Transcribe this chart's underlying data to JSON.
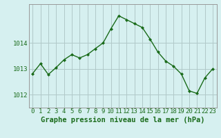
{
  "x": [
    0,
    1,
    2,
    3,
    4,
    5,
    6,
    7,
    8,
    9,
    10,
    11,
    12,
    13,
    14,
    15,
    16,
    17,
    18,
    19,
    20,
    21,
    22,
    23
  ],
  "y": [
    1012.82,
    1013.2,
    1012.78,
    1013.05,
    1013.35,
    1013.55,
    1013.42,
    1013.55,
    1013.78,
    1014.0,
    1014.55,
    1015.05,
    1014.9,
    1014.75,
    1014.6,
    1014.15,
    1013.65,
    1013.3,
    1013.1,
    1012.8,
    1012.15,
    1012.05,
    1012.65,
    1013.0
  ],
  "line_color": "#1a6b1a",
  "marker_color": "#1a6b1a",
  "bg_color": "#d6f0f0",
  "grid_color": "#b0c8c8",
  "axis_label_color": "#1a6b1a",
  "title": "Graphe pression niveau de la mer (hPa)",
  "ylim_min": 1011.5,
  "ylim_max": 1015.5,
  "yticks": [
    1012,
    1013,
    1014
  ],
  "xtick_labels": [
    "0",
    "1",
    "2",
    "3",
    "4",
    "5",
    "6",
    "7",
    "8",
    "9",
    "10",
    "11",
    "12",
    "13",
    "14",
    "15",
    "16",
    "17",
    "18",
    "19",
    "20",
    "21",
    "22",
    "23"
  ],
  "title_fontsize": 7.5,
  "tick_fontsize": 6.5,
  "line_width": 1.0,
  "marker_size": 2.0
}
